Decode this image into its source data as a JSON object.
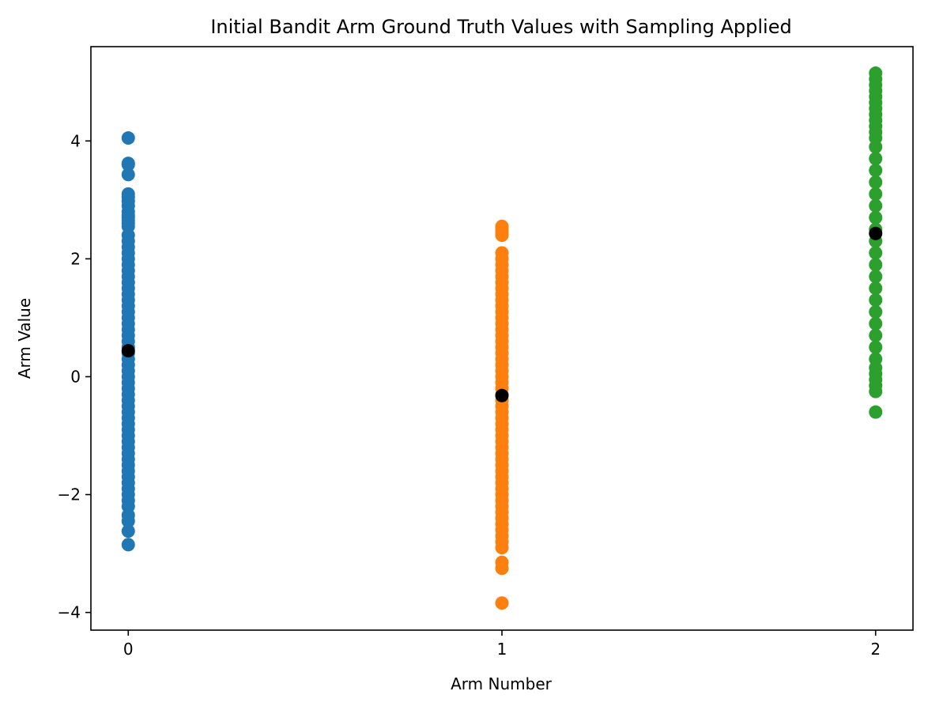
{
  "chart_data": {
    "type": "scatter",
    "title": "Initial Bandit Arm Ground Truth Values with Sampling Applied",
    "xlabel": "Arm Number",
    "ylabel": "Arm Value",
    "xlim": [
      -0.1,
      2.1
    ],
    "ylim": [
      -4.3,
      5.6
    ],
    "xticks": [
      0,
      1,
      2
    ],
    "yticks": [
      -4,
      -2,
      0,
      2,
      4
    ],
    "grid": false,
    "legend": "none",
    "series": [
      {
        "color": "#1f77b4",
        "x": 0,
        "values": [
          4.05,
          3.62,
          3.6,
          3.43,
          3.1,
          3.05,
          2.98,
          2.9,
          2.8,
          2.74,
          2.7,
          2.65,
          2.6,
          2.55,
          2.4,
          2.3,
          2.2,
          2.1,
          2.0,
          1.9,
          1.8,
          1.7,
          1.6,
          1.5,
          1.4,
          1.3,
          1.2,
          1.1,
          1.0,
          0.9,
          0.8,
          0.7,
          0.6,
          0.5,
          0.4,
          0.3,
          0.2,
          0.1,
          0.0,
          -0.1,
          -0.2,
          -0.3,
          -0.4,
          -0.5,
          -0.6,
          -0.7,
          -0.8,
          -0.9,
          -1.0,
          -1.1,
          -1.2,
          -1.3,
          -1.4,
          -1.5,
          -1.6,
          -1.7,
          -1.8,
          -1.9,
          -2.0,
          -2.1,
          -2.2,
          -2.35,
          -2.45,
          -2.62,
          -2.85
        ]
      },
      {
        "color": "#ff7f0e",
        "x": 1,
        "values": [
          2.55,
          2.5,
          2.45,
          2.4,
          2.1,
          2.0,
          1.9,
          1.8,
          1.7,
          1.6,
          1.5,
          1.4,
          1.3,
          1.2,
          1.1,
          1.0,
          0.9,
          0.8,
          0.7,
          0.6,
          0.5,
          0.4,
          0.3,
          0.2,
          0.1,
          0.0,
          -0.1,
          -0.2,
          -0.3,
          -0.4,
          -0.5,
          -0.6,
          -0.7,
          -0.8,
          -0.9,
          -1.0,
          -1.1,
          -1.2,
          -1.3,
          -1.4,
          -1.5,
          -1.6,
          -1.7,
          -1.8,
          -1.9,
          -2.0,
          -2.1,
          -2.2,
          -2.3,
          -2.4,
          -2.5,
          -2.6,
          -2.7,
          -2.8,
          -2.9,
          -3.15,
          -3.25,
          -3.84
        ]
      },
      {
        "color": "#2ca02c",
        "x": 2,
        "values": [
          5.15,
          5.05,
          4.95,
          4.85,
          4.75,
          4.65,
          4.55,
          4.45,
          4.35,
          4.25,
          4.15,
          4.05,
          3.9,
          3.7,
          3.5,
          3.3,
          3.1,
          2.9,
          2.7,
          2.5,
          2.3,
          2.1,
          1.9,
          1.7,
          1.5,
          1.3,
          1.1,
          0.9,
          0.7,
          0.5,
          0.3,
          0.15,
          0.05,
          -0.05,
          -0.15,
          -0.25,
          -0.6
        ]
      }
    ],
    "means": {
      "color": "#000000",
      "x": [
        0,
        1,
        2
      ],
      "values": [
        0.44,
        -0.32,
        2.43
      ]
    }
  }
}
